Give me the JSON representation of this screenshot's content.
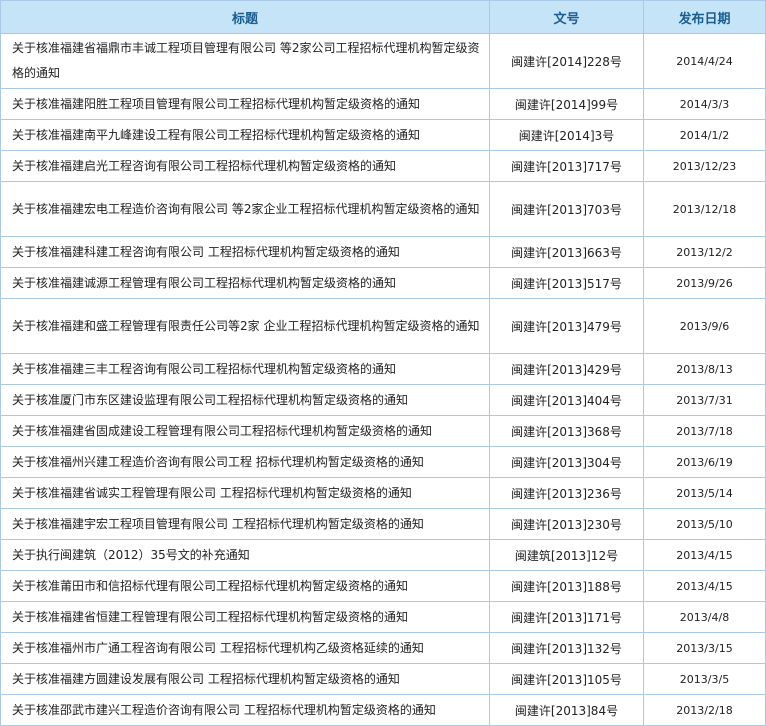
{
  "table": {
    "headers": {
      "title": "标题",
      "doc_no": "文号",
      "date": "发布日期"
    },
    "colors": {
      "header_bg": "#c6e4f7",
      "header_text": "#1b5d8f",
      "border": "#a9c9e6"
    },
    "rows": [
      {
        "title": "关于核准福建省福鼎市丰诚工程项目管理有限公司 等2家公司工程招标代理机构暂定级资格的通知",
        "doc_no": "闽建许[2014]228号",
        "date": "2014/4/24",
        "tall": true
      },
      {
        "title": "关于核准福建阳胜工程项目管理有限公司工程招标代理机构暂定级资格的通知",
        "doc_no": "闽建许[2014]99号",
        "date": "2014/3/3"
      },
      {
        "title": "关于核准福建南平九峰建设工程有限公司工程招标代理机构暂定级资格的通知",
        "doc_no": "闽建许[2014]3号",
        "date": "2014/1/2"
      },
      {
        "title": "关于核准福建启光工程咨询有限公司工程招标代理机构暂定级资格的通知",
        "doc_no": "闽建许[2013]717号",
        "date": "2013/12/23"
      },
      {
        "title": "关于核准福建宏电工程造价咨询有限公司 等2家企业工程招标代理机构暂定级资格的通知",
        "doc_no": "闽建许[2013]703号",
        "date": "2013/12/18",
        "tall": true
      },
      {
        "title": "关于核准福建科建工程咨询有限公司 工程招标代理机构暂定级资格的通知",
        "doc_no": "闽建许[2013]663号",
        "date": "2013/12/2"
      },
      {
        "title": "关于核准福建诚源工程管理有限公司工程招标代理机构暂定级资格的通知",
        "doc_no": "闽建许[2013]517号",
        "date": "2013/9/26"
      },
      {
        "title": "关于核准福建和盛工程管理有限责任公司等2家 企业工程招标代理机构暂定级资格的通知",
        "doc_no": "闽建许[2013]479号",
        "date": "2013/9/6",
        "tall": true
      },
      {
        "title": "关于核准福建三丰工程咨询有限公司工程招标代理机构暂定级资格的通知",
        "doc_no": "闽建许[2013]429号",
        "date": "2013/8/13"
      },
      {
        "title": "关于核准厦门市东区建设监理有限公司工程招标代理机构暂定级资格的通知",
        "doc_no": "闽建许[2013]404号",
        "date": "2013/7/31"
      },
      {
        "title": "关于核准福建省固成建设工程管理有限公司工程招标代理机构暂定级资格的通知",
        "doc_no": "闽建许[2013]368号",
        "date": "2013/7/18"
      },
      {
        "title": "关于核准福州兴建工程造价咨询有限公司工程 招标代理机构暂定级资格的通知",
        "doc_no": "闽建许[2013]304号",
        "date": "2013/6/19"
      },
      {
        "title": "关于核准福建省诚实工程管理有限公司 工程招标代理机构暂定级资格的通知",
        "doc_no": "闽建许[2013]236号",
        "date": "2013/5/14"
      },
      {
        "title": "关于核准福建宇宏工程项目管理有限公司 工程招标代理机构暂定级资格的通知",
        "doc_no": "闽建许[2013]230号",
        "date": "2013/5/10"
      },
      {
        "title": "关于执行闽建筑（2012）35号文的补充通知",
        "doc_no": "闽建筑[2013]12号",
        "date": "2013/4/15"
      },
      {
        "title": "关于核准莆田市和信招标代理有限公司工程招标代理机构暂定级资格的通知",
        "doc_no": "闽建许[2013]188号",
        "date": "2013/4/15"
      },
      {
        "title": "关于核准福建省恒建工程管理有限公司工程招标代理机构暂定级资格的通知",
        "doc_no": "闽建许[2013]171号",
        "date": "2013/4/8"
      },
      {
        "title": "关于核准福州市广通工程咨询有限公司 工程招标代理机构乙级资格延续的通知",
        "doc_no": "闽建许[2013]132号",
        "date": "2013/3/15"
      },
      {
        "title": "关于核准福建方圆建设发展有限公司 工程招标代理机构暂定级资格的通知",
        "doc_no": "闽建许[2013]105号",
        "date": "2013/3/5"
      },
      {
        "title": "关于核准邵武市建兴工程造价咨询有限公司 工程招标代理机构暂定级资格的通知",
        "doc_no": "闽建许[2013]84号",
        "date": "2013/2/18"
      }
    ]
  }
}
